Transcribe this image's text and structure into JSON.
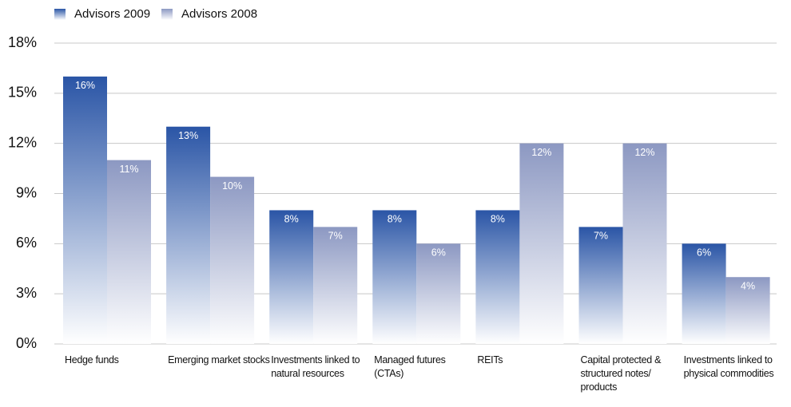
{
  "chart_data": {
    "type": "bar",
    "categories": [
      "Hedge funds",
      "Emerging market stocks",
      "Investments linked to natural resources",
      "Managed futures (CTAs)",
      "REITs",
      "Capital protected & structured notes/ products",
      "Investments linked to physical commodities"
    ],
    "series": [
      {
        "name": "Advisors 2009",
        "color": "#2a55a6",
        "values": [
          16,
          13,
          8,
          8,
          8,
          7,
          6
        ],
        "value_labels": [
          "16%",
          "13%",
          "8%",
          "8%",
          "8%",
          "7%",
          "6%"
        ]
      },
      {
        "name": "Advisors 2008",
        "color": "#8c98c2",
        "values": [
          11,
          10,
          7,
          6,
          12,
          12,
          4
        ],
        "value_labels": [
          "11%",
          "10%",
          "7%",
          "6%",
          "12%",
          "12%",
          "4%"
        ]
      }
    ],
    "ylim": [
      0,
      18
    ],
    "yticks": [
      {
        "value": 0,
        "label": "0%"
      },
      {
        "value": 3,
        "label": "3%"
      },
      {
        "value": 6,
        "label": "6%"
      },
      {
        "value": 9,
        "label": "9%"
      },
      {
        "value": 12,
        "label": "12%"
      },
      {
        "value": 15,
        "label": "15%"
      },
      {
        "value": 18,
        "label": "18%"
      }
    ],
    "grid": true
  }
}
